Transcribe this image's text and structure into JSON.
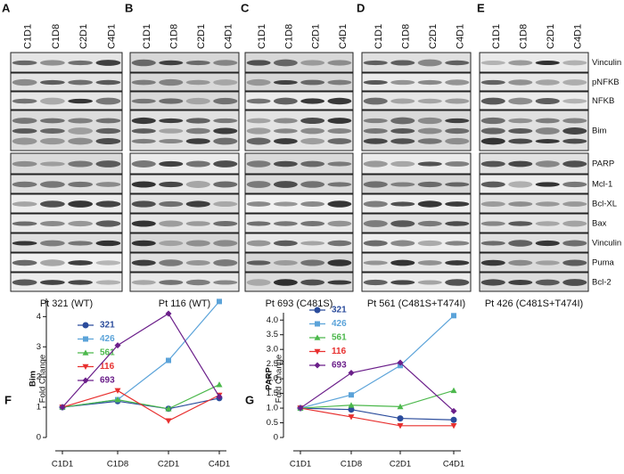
{
  "panels": [
    {
      "label": "A",
      "lanes": [
        "C1D1",
        "C1D8",
        "C2D1",
        "C4D1"
      ],
      "patient": "Pt 321 (WT)"
    },
    {
      "label": "B",
      "lanes": [
        "C1D1",
        "C1D8",
        "C2D1",
        "C4D1"
      ],
      "patient": "Pt 116 (WT)"
    },
    {
      "label": "C",
      "lanes": [
        "C1D1",
        "C1D8",
        "C2D1",
        "C4D1"
      ],
      "patient": "Pt 693 (C481S)"
    },
    {
      "label": "D",
      "lanes": [
        "C1D1",
        "C1D8",
        "C2D1",
        "C4D1"
      ],
      "patient": "Pt 561 (C481S+T474I)"
    },
    {
      "label": "E",
      "lanes": [
        "C1D1",
        "C1D8",
        "C2D1",
        "C4D1"
      ],
      "patient": "Pt 426 (C481S+T474I)"
    }
  ],
  "proteins": [
    "Vinculin",
    "pNFKB",
    "NFKB",
    "Bim",
    "PARP",
    "Mcl-1",
    "Bcl-XL",
    "Bax",
    "Vinculin",
    "Puma",
    "Bcl-2"
  ],
  "chart_data": [
    {
      "type": "line",
      "label": "F",
      "ylabel_title": "Bim",
      "ylabel": "Fold Change",
      "categories": [
        "C1D1",
        "C1D8",
        "C2D1",
        "C4D1"
      ],
      "series": [
        {
          "name": "321",
          "color": "#2b4c9c",
          "values": [
            1,
            1.2,
            0.95,
            1.3
          ]
        },
        {
          "name": "426",
          "color": "#5ba3d9",
          "values": [
            1,
            1.25,
            2.55,
            4.5
          ]
        },
        {
          "name": "561",
          "color": "#4cb84c",
          "values": [
            1,
            1.25,
            0.95,
            1.75
          ]
        },
        {
          "name": "116",
          "color": "#e8302f",
          "values": [
            1,
            1.55,
            0.55,
            1.4
          ]
        },
        {
          "name": "693",
          "color": "#6b1f8a",
          "values": [
            1,
            3.05,
            4.1,
            1.35
          ]
        }
      ],
      "ylim": [
        0,
        4.6
      ],
      "yticks": [
        0,
        1,
        2,
        3,
        4
      ]
    },
    {
      "type": "line",
      "label": "G",
      "ylabel_title": "PARP",
      "ylabel": "Fold Change",
      "categories": [
        "C1D1",
        "C1D8",
        "C2D1",
        "C4D1"
      ],
      "series": [
        {
          "name": "321",
          "color": "#2b4c9c",
          "values": [
            1,
            0.95,
            0.65,
            0.6
          ]
        },
        {
          "name": "426",
          "color": "#5ba3d9",
          "values": [
            1,
            1.45,
            2.45,
            4.15
          ]
        },
        {
          "name": "561",
          "color": "#4cb84c",
          "values": [
            1,
            1.1,
            1.05,
            1.6
          ]
        },
        {
          "name": "116",
          "color": "#e8302f",
          "values": [
            1,
            0.7,
            0.4,
            0.4
          ]
        },
        {
          "name": "693",
          "color": "#6b1f8a",
          "values": [
            1,
            2.2,
            2.55,
            0.9
          ]
        }
      ],
      "ylim": [
        0,
        4.25
      ],
      "yticks": [
        0,
        0.5,
        {
          "value": 1,
          "label": "1.0"
        },
        1.5,
        {
          "value": 2,
          "label": "2.0"
        },
        2.5,
        {
          "value": 3,
          "label": "3.0"
        },
        3.5,
        {
          "value": 4,
          "label": "4.0"
        }
      ]
    }
  ]
}
